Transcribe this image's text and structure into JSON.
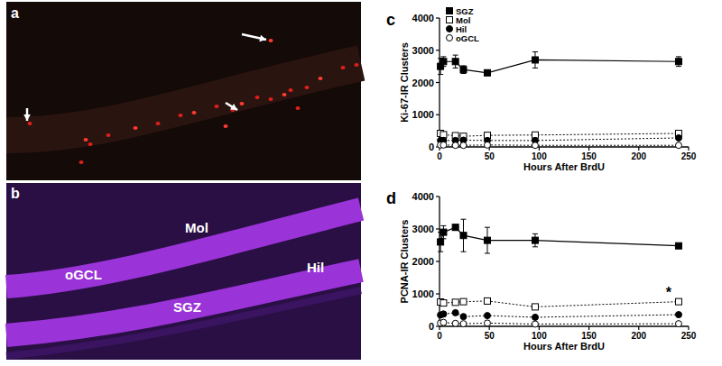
{
  "chart_data": [
    {
      "type": "line",
      "annotations": [
        {
          "text": "c"
        }
      ],
      "x_label": "Hours After BrdU",
      "y_label": "Ki-67-IR Clusters",
      "x": [
        1,
        4,
        16,
        24,
        48,
        96,
        240
      ],
      "xlim": [
        0,
        250
      ],
      "xticks": [
        0,
        50,
        100,
        150,
        200,
        250
      ],
      "ylim": [
        0,
        4000
      ],
      "yticks": [
        0,
        1000,
        2000,
        3000,
        4000
      ],
      "legend": "upper left",
      "series": [
        {
          "name": "SGZ",
          "color": "#000000",
          "marker": "square",
          "line_style": "solid",
          "values": [
            2500,
            2650,
            2650,
            2400,
            2300,
            2700,
            2650
          ],
          "errors": [
            250,
            150,
            200,
            120,
            80,
            250,
            150
          ]
        },
        {
          "name": "Mol",
          "color": "#000000",
          "marker": "open-square",
          "line_style": "dotted",
          "values": [
            420,
            380,
            350,
            330,
            360,
            370,
            420
          ],
          "errors": [
            40,
            30,
            30,
            30,
            30,
            30,
            40
          ]
        },
        {
          "name": "Hil",
          "color": "#000000",
          "marker": "circle",
          "line_style": "dotted",
          "values": [
            200,
            200,
            200,
            210,
            200,
            200,
            280
          ],
          "errors": [
            20,
            20,
            20,
            20,
            20,
            20,
            30
          ]
        },
        {
          "name": "oGCL",
          "color": "#000000",
          "marker": "open-circle",
          "line_style": "dotted",
          "values": [
            60,
            60,
            50,
            50,
            60,
            50,
            50
          ],
          "errors": [
            10,
            10,
            10,
            10,
            10,
            10,
            10
          ]
        }
      ]
    },
    {
      "type": "line",
      "annotations": [
        {
          "text": "d"
        },
        {
          "text": "*",
          "x": 230,
          "y": 900
        }
      ],
      "x_label": "Hours After BrdU",
      "y_label": "PCNA-IR Clusters",
      "x": [
        1,
        4,
        16,
        24,
        48,
        96,
        240
      ],
      "xlim": [
        0,
        250
      ],
      "xticks": [
        0,
        50,
        100,
        150,
        200,
        250
      ],
      "ylim": [
        0,
        4000
      ],
      "yticks": [
        0,
        1000,
        2000,
        3000,
        4000
      ],
      "series": [
        {
          "color": "#000000",
          "marker": "square",
          "line_style": "solid",
          "values": [
            2600,
            2900,
            3050,
            2800,
            2650,
            2650,
            2480
          ],
          "errors": [
            300,
            200,
            80,
            500,
            400,
            200,
            60
          ]
        },
        {
          "color": "#000000",
          "marker": "open-square",
          "line_style": "dotted",
          "values": [
            750,
            720,
            740,
            760,
            780,
            600,
            760
          ],
          "errors": [
            40,
            30,
            30,
            30,
            40,
            30,
            40
          ]
        },
        {
          "color": "#000000",
          "marker": "circle",
          "line_style": "dotted",
          "values": [
            350,
            380,
            420,
            300,
            330,
            280,
            360
          ],
          "errors": [
            30,
            30,
            30,
            20,
            20,
            20,
            30
          ]
        },
        {
          "color": "#000000",
          "marker": "open-circle",
          "line_style": "dotted",
          "values": [
            100,
            120,
            90,
            80,
            100,
            70,
            80
          ],
          "errors": [
            10,
            10,
            10,
            10,
            10,
            10,
            10
          ]
        }
      ]
    }
  ],
  "images": [
    {
      "label": "a"
    },
    {
      "label": "b",
      "regions": [
        "Mol",
        "oGCL",
        "SGZ",
        "Hil"
      ]
    }
  ]
}
